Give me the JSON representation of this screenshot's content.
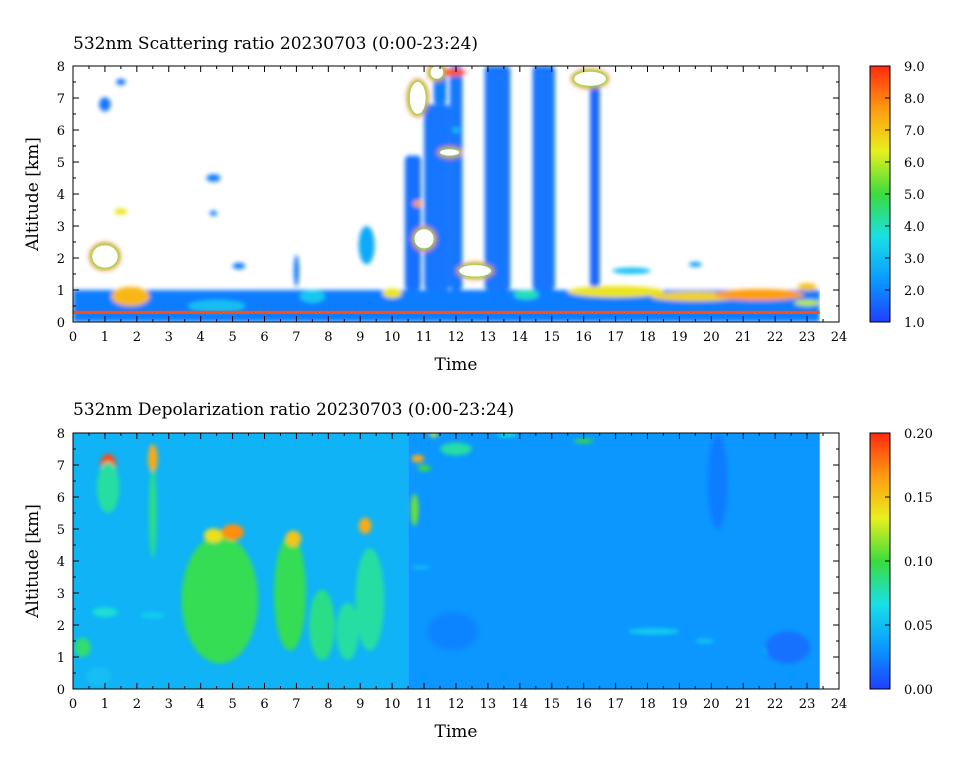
{
  "chart_data": [
    {
      "type": "heatmap",
      "title": "532nm Scattering ratio  20230703 (0:00-23:24)",
      "xlabel": "Time",
      "ylabel": "Altitude [km]",
      "xlim": [
        0,
        24
      ],
      "ylim": [
        0,
        8
      ],
      "x_ticks": [
        "0",
        "1",
        "2",
        "3",
        "4",
        "5",
        "6",
        "7",
        "8",
        "9",
        "10",
        "11",
        "12",
        "13",
        "14",
        "15",
        "16",
        "17",
        "18",
        "19",
        "20",
        "21",
        "22",
        "23",
        "24"
      ],
      "y_ticks": [
        "0",
        "1",
        "2",
        "3",
        "4",
        "5",
        "6",
        "7",
        "8"
      ],
      "data_time_range": [
        0,
        23.4
      ],
      "colorbar": {
        "range": [
          1.0,
          9.0
        ],
        "ticks": [
          "1.0",
          "2.0",
          "3.0",
          "4.0",
          "5.0",
          "6.0",
          "7.0",
          "8.0",
          "9.0"
        ],
        "colors": [
          "#1f3fff",
          "#0a9bff",
          "#19e0e6",
          "#3bdc3b",
          "#e8f01e",
          "#ff9a10",
          "#ff2a10"
        ],
        "above_max_color": "#ffffff"
      },
      "regions": [
        {
          "kind": "blanket",
          "t0": 0,
          "t1": 23.4,
          "h0": 0,
          "h1": 1.0,
          "value": 1.9
        },
        {
          "kind": "column",
          "t0": 10.4,
          "t1": 10.9,
          "h0": 1.0,
          "h1": 5.2,
          "value": 1.7
        },
        {
          "kind": "column",
          "t0": 11.0,
          "t1": 11.8,
          "h0": 1.0,
          "h1": 6.8,
          "value": 1.8
        },
        {
          "kind": "column",
          "t0": 11.3,
          "t1": 11.7,
          "h0": 6.8,
          "h1": 8.0,
          "value": 1.9
        },
        {
          "kind": "column",
          "t0": 11.8,
          "t1": 12.2,
          "h0": 1.0,
          "h1": 8.0,
          "value": 1.8
        },
        {
          "kind": "column",
          "t0": 12.9,
          "t1": 13.7,
          "h0": 1.0,
          "h1": 8.0,
          "value": 1.8
        },
        {
          "kind": "column",
          "t0": 14.4,
          "t1": 15.1,
          "h0": 1.0,
          "h1": 8.0,
          "value": 1.8
        },
        {
          "kind": "column",
          "t0": 16.2,
          "t1": 16.5,
          "h0": 1.0,
          "h1": 7.8,
          "value": 1.6
        },
        {
          "kind": "blob",
          "t": 1.0,
          "h": 6.8,
          "rt": 0.18,
          "rh": 0.22,
          "value": 1.8
        },
        {
          "kind": "blob",
          "t": 1.5,
          "h": 7.5,
          "rt": 0.15,
          "rh": 0.1,
          "value": 1.8
        },
        {
          "kind": "blob",
          "t": 1.0,
          "h": 2.05,
          "rt": 0.4,
          "rh": 0.35,
          "value": 9.5
        },
        {
          "kind": "blob",
          "t": 1.5,
          "h": 3.45,
          "rt": 0.2,
          "rh": 0.1,
          "value": 6.5
        },
        {
          "kind": "blob",
          "t": 4.4,
          "h": 4.5,
          "rt": 0.22,
          "rh": 0.12,
          "value": 1.9
        },
        {
          "kind": "blob",
          "t": 4.4,
          "h": 3.4,
          "rt": 0.12,
          "rh": 0.08,
          "value": 1.9
        },
        {
          "kind": "blob",
          "t": 5.2,
          "h": 1.75,
          "rt": 0.2,
          "rh": 0.1,
          "value": 1.9
        },
        {
          "kind": "blob",
          "t": 7.0,
          "h": 1.6,
          "rt": 0.08,
          "rh": 0.5,
          "value": 1.8
        },
        {
          "kind": "blob",
          "t": 9.2,
          "h": 2.4,
          "rt": 0.25,
          "rh": 0.6,
          "value": 2.6
        },
        {
          "kind": "blob",
          "t": 1.8,
          "h": 0.8,
          "rt": 0.6,
          "rh": 0.3,
          "value": 7.2
        },
        {
          "kind": "blob",
          "t": 4.5,
          "h": 0.5,
          "rt": 0.9,
          "rh": 0.2,
          "value": 3.0
        },
        {
          "kind": "blob",
          "t": 7.5,
          "h": 0.8,
          "rt": 0.4,
          "rh": 0.2,
          "value": 3.2
        },
        {
          "kind": "blob",
          "t": 10.0,
          "h": 0.9,
          "rt": 0.3,
          "rh": 0.15,
          "value": 6.5
        },
        {
          "kind": "blob",
          "t": 10.8,
          "h": 7.0,
          "rt": 0.25,
          "rh": 0.5,
          "value": 9.5
        },
        {
          "kind": "blob",
          "t": 11.4,
          "h": 7.8,
          "rt": 0.2,
          "rh": 0.2,
          "value": 9.5
        },
        {
          "kind": "blob",
          "t": 11.95,
          "h": 7.8,
          "rt": 0.35,
          "rh": 0.12,
          "value": 8.5
        },
        {
          "kind": "blob",
          "t": 11.0,
          "h": 2.6,
          "rt": 0.3,
          "rh": 0.3,
          "value": 9.5
        },
        {
          "kind": "blob",
          "t": 11.8,
          "h": 5.3,
          "rt": 0.3,
          "rh": 0.1,
          "value": 9.5
        },
        {
          "kind": "blob",
          "t": 10.8,
          "h": 3.7,
          "rt": 0.15,
          "rh": 0.1,
          "value": 7.5
        },
        {
          "kind": "blob",
          "t": 12.0,
          "h": 6.0,
          "rt": 0.12,
          "rh": 0.08,
          "value": 3.2
        },
        {
          "kind": "blob",
          "t": 12.6,
          "h": 1.6,
          "rt": 0.5,
          "rh": 0.18,
          "value": 9.5
        },
        {
          "kind": "blob",
          "t": 16.2,
          "h": 7.6,
          "rt": 0.5,
          "rh": 0.22,
          "value": 9.5
        },
        {
          "kind": "blob",
          "t": 14.2,
          "h": 0.85,
          "rt": 0.4,
          "rh": 0.15,
          "value": 4.0
        },
        {
          "kind": "blob",
          "t": 17.5,
          "h": 1.6,
          "rt": 0.6,
          "rh": 0.1,
          "value": 3.0
        },
        {
          "kind": "blob",
          "t": 19.5,
          "h": 1.8,
          "rt": 0.2,
          "rh": 0.08,
          "value": 2.5
        },
        {
          "kind": "blob",
          "t": 17.0,
          "h": 0.95,
          "rt": 1.5,
          "rh": 0.18,
          "value": 6.5
        },
        {
          "kind": "blob",
          "t": 19.5,
          "h": 0.8,
          "rt": 1.4,
          "rh": 0.15,
          "value": 6.8
        },
        {
          "kind": "blob",
          "t": 21.5,
          "h": 0.85,
          "rt": 1.4,
          "rh": 0.18,
          "value": 7.6
        },
        {
          "kind": "blob",
          "t": 23.0,
          "h": 1.1,
          "rt": 0.3,
          "rh": 0.12,
          "value": 7.0
        },
        {
          "kind": "blob",
          "t": 23.0,
          "h": 0.6,
          "rt": 0.4,
          "rh": 0.1,
          "value": 6.0
        },
        {
          "kind": "band",
          "t0": 0,
          "t1": 23.4,
          "h0": 0.25,
          "h1": 0.35,
          "value": 8.6
        }
      ]
    },
    {
      "type": "heatmap",
      "title": "532nm Depolarization ratio  20230703 (0:00-23:24)",
      "xlabel": "Time",
      "ylabel": "Altitude [km]",
      "xlim": [
        0,
        24
      ],
      "ylim": [
        0,
        8
      ],
      "x_ticks": [
        "0",
        "1",
        "2",
        "3",
        "4",
        "5",
        "6",
        "7",
        "8",
        "9",
        "10",
        "11",
        "12",
        "13",
        "14",
        "15",
        "16",
        "17",
        "18",
        "19",
        "20",
        "21",
        "22",
        "23",
        "24"
      ],
      "y_ticks": [
        "0",
        "1",
        "2",
        "3",
        "4",
        "5",
        "6",
        "7",
        "8"
      ],
      "data_time_range": [
        0,
        23.4
      ],
      "colorbar": {
        "range": [
          0.0,
          0.2
        ],
        "ticks": [
          "0.00",
          "0.05",
          "0.10",
          "0.15",
          "0.20"
        ],
        "colors": [
          "#1f3fff",
          "#0a9bff",
          "#19e0e6",
          "#3bdc3b",
          "#e8f01e",
          "#ff9a10",
          "#ff2a10"
        ]
      },
      "background": [
        {
          "t0": 0,
          "t1": 10.5,
          "value": 0.045
        },
        {
          "t0": 10.5,
          "t1": 23.4,
          "value": 0.032
        }
      ],
      "regions": [
        {
          "kind": "blob",
          "t": 1.1,
          "h": 7.0,
          "rt": 0.25,
          "rh": 0.35,
          "value": 0.19
        },
        {
          "kind": "blob",
          "t": 1.05,
          "h": 6.7,
          "rt": 0.1,
          "rh": 0.05,
          "value": 0.25
        },
        {
          "kind": "blob",
          "t": 1.1,
          "h": 6.3,
          "rt": 0.35,
          "rh": 0.8,
          "value": 0.08
        },
        {
          "kind": "blob",
          "t": 2.5,
          "h": 7.2,
          "rt": 0.15,
          "rh": 0.45,
          "value": 0.16
        },
        {
          "kind": "blob",
          "t": 2.5,
          "h": 5.5,
          "rt": 0.12,
          "rh": 1.4,
          "value": 0.085
        },
        {
          "kind": "blob",
          "t": 0.3,
          "h": 1.3,
          "rt": 0.25,
          "rh": 0.3,
          "value": 0.09
        },
        {
          "kind": "blob",
          "t": 1.0,
          "h": 2.4,
          "rt": 0.4,
          "rh": 0.15,
          "value": 0.07
        },
        {
          "kind": "blob",
          "t": 4.6,
          "h": 2.8,
          "rt": 1.2,
          "rh": 2.0,
          "value": 0.095
        },
        {
          "kind": "blob",
          "t": 4.4,
          "h": 4.8,
          "rt": 0.3,
          "rh": 0.22,
          "value": 0.14
        },
        {
          "kind": "blob",
          "t": 5.0,
          "h": 4.9,
          "rt": 0.35,
          "rh": 0.25,
          "value": 0.17
        },
        {
          "kind": "blob",
          "t": 6.8,
          "h": 3.0,
          "rt": 0.5,
          "rh": 1.8,
          "value": 0.095
        },
        {
          "kind": "blob",
          "t": 6.9,
          "h": 4.7,
          "rt": 0.25,
          "rh": 0.25,
          "value": 0.15
        },
        {
          "kind": "blob",
          "t": 7.8,
          "h": 2.0,
          "rt": 0.4,
          "rh": 1.1,
          "value": 0.085
        },
        {
          "kind": "blob",
          "t": 8.6,
          "h": 1.8,
          "rt": 0.35,
          "rh": 0.9,
          "value": 0.08
        },
        {
          "kind": "blob",
          "t": 9.3,
          "h": 2.8,
          "rt": 0.45,
          "rh": 1.6,
          "value": 0.08
        },
        {
          "kind": "blob",
          "t": 9.15,
          "h": 5.1,
          "rt": 0.2,
          "rh": 0.25,
          "value": 0.16
        },
        {
          "kind": "blob",
          "t": 10.7,
          "h": 5.6,
          "rt": 0.12,
          "rh": 0.5,
          "value": 0.11
        },
        {
          "kind": "blob",
          "t": 10.8,
          "h": 7.2,
          "rt": 0.2,
          "rh": 0.12,
          "value": 0.16
        },
        {
          "kind": "blob",
          "t": 11.0,
          "h": 6.9,
          "rt": 0.2,
          "rh": 0.1,
          "value": 0.1
        },
        {
          "kind": "blob",
          "t": 11.3,
          "h": 7.95,
          "rt": 0.12,
          "rh": 0.08,
          "value": 0.13
        },
        {
          "kind": "blob",
          "t": 12.0,
          "h": 7.5,
          "rt": 0.5,
          "rh": 0.2,
          "value": 0.08
        },
        {
          "kind": "blob",
          "t": 13.6,
          "h": 7.95,
          "rt": 0.3,
          "rh": 0.08,
          "value": 0.07
        },
        {
          "kind": "blob",
          "t": 16.0,
          "h": 7.75,
          "rt": 0.3,
          "rh": 0.07,
          "value": 0.1
        },
        {
          "kind": "blob",
          "t": 10.9,
          "h": 3.8,
          "rt": 0.3,
          "rh": 0.06,
          "value": 0.05
        },
        {
          "kind": "blob",
          "t": 18.2,
          "h": 1.8,
          "rt": 0.8,
          "rh": 0.1,
          "value": 0.058
        },
        {
          "kind": "blob",
          "t": 19.8,
          "h": 1.5,
          "rt": 0.3,
          "rh": 0.08,
          "value": 0.052
        },
        {
          "kind": "blob",
          "t": 22.3,
          "h": 1.2,
          "rt": 0.7,
          "rh": 0.1,
          "value": 0.055
        },
        {
          "kind": "blob",
          "t": 20.2,
          "h": 6.5,
          "rt": 0.3,
          "rh": 1.5,
          "value": 0.022
        },
        {
          "kind": "blob",
          "t": 22.4,
          "h": 1.3,
          "rt": 0.7,
          "rh": 0.5,
          "value": 0.018
        },
        {
          "kind": "blob",
          "t": 2.5,
          "h": 2.3,
          "rt": 0.4,
          "rh": 0.08,
          "value": 0.06
        },
        {
          "kind": "blob",
          "t": 0.8,
          "h": 0.4,
          "rt": 0.4,
          "rh": 0.3,
          "value": 0.05
        },
        {
          "kind": "blob",
          "t": 11.9,
          "h": 1.8,
          "rt": 0.8,
          "rh": 0.6,
          "value": 0.025
        }
      ]
    }
  ]
}
